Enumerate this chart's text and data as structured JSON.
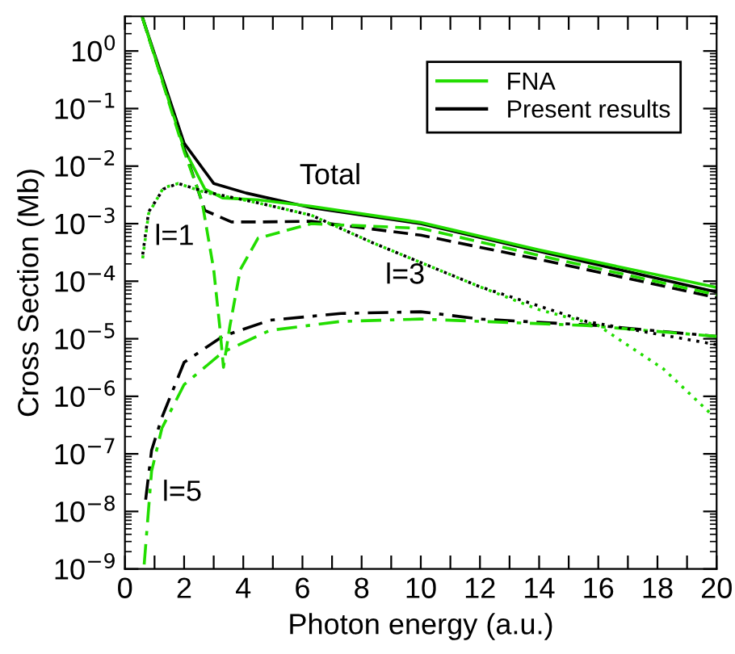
{
  "chart_data": {
    "type": "line",
    "xlabel": "Photon energy (a.u.)",
    "ylabel": "Cross Section (Mb)",
    "log": "y",
    "xlim": [
      0,
      20
    ],
    "ylim": [
      1e-09,
      4
    ],
    "xticks": [
      0,
      {
        "value": 1,
        "label": null
      },
      2,
      {
        "value": 3,
        "label": null
      },
      4,
      {
        "value": 5,
        "label": null
      },
      6,
      {
        "value": 7,
        "label": null
      },
      8,
      {
        "value": 9,
        "label": null
      },
      10,
      {
        "value": 11,
        "label": null
      },
      12,
      {
        "value": 13,
        "label": null
      },
      14,
      {
        "value": 15,
        "label": null
      },
      16,
      {
        "value": 17,
        "label": null
      },
      18,
      {
        "value": 19,
        "label": null
      },
      20
    ],
    "yticks": [
      {
        "value": 1e-09,
        "label": "10$^{−9}$"
      },
      {
        "value": 1e-08,
        "label": "10$^{−8}$"
      },
      {
        "value": 1e-07,
        "label": "10$^{−7}$"
      },
      {
        "value": 1e-06,
        "label": "10$^{−6}$"
      },
      {
        "value": 1e-05,
        "label": "10$^{−5}$"
      },
      {
        "value": 0.0001,
        "label": "10$^{−4}$"
      },
      {
        "value": 0.001,
        "label": "10$^{−3}$"
      },
      {
        "value": 0.01,
        "label": "10$^{−2}$"
      },
      {
        "value": 0.1,
        "label": "10$^{−1}$"
      },
      {
        "value": 1,
        "label": "10$^{0}$"
      }
    ],
    "grid": false,
    "legend": "top right",
    "marker": "none",
    "series": [
      {
        "name": "FNA",
        "color": "#22dd00",
        "line_style": "solid",
        "x": [
          0.6,
          2,
          2.7,
          3.3,
          4.5,
          6.3,
          10,
          14,
          20
        ],
        "values": [
          3.7,
          0.02,
          0.004,
          0.0028,
          0.0026,
          0.002,
          0.00105,
          0.00035,
          7.8e-05
        ]
      },
      {
        "name": "Present results",
        "color": "#000000",
        "line_style": "solid",
        "x": [
          0.6,
          2,
          3,
          4.1,
          6.3,
          10,
          14,
          20
        ],
        "values": [
          3.7,
          0.025,
          0.005,
          0.0034,
          0.0019,
          0.001,
          0.00033,
          6.5e-05
        ]
      },
      {
        "color": "#22dd00",
        "line_style": "dotted",
        "x": [
          0.6,
          0.8,
          1.3,
          1.8,
          2.7,
          4.5,
          6.3,
          8.4,
          12,
          14,
          16,
          18.2,
          19.8
        ],
        "values": [
          0.00025,
          0.0015,
          0.0042,
          0.005,
          0.0035,
          0.0023,
          0.0014,
          0.00046,
          8e-05,
          3.2e-05,
          1.7e-05,
          3e-06,
          5e-07
        ]
      },
      {
        "color": "#000000",
        "line_style": "dotted",
        "x": [
          0.6,
          0.8,
          1.3,
          1.8,
          2.7,
          4.5,
          6.3,
          8.4,
          12,
          15.6,
          20
        ],
        "values": [
          0.00029,
          0.0016,
          0.004,
          0.005,
          0.0036,
          0.0023,
          0.0014,
          0.00046,
          8e-05,
          2e-05,
          7.9e-06
        ]
      },
      {
        "color": "#22dd00",
        "line_style": "dashed",
        "x": [
          0.6,
          2,
          2.6,
          3.0,
          3.2,
          3.33,
          3.55,
          3.9,
          4.5,
          6.3,
          10,
          14,
          20
        ],
        "values": [
          3.7,
          0.018,
          0.0025,
          0.00016,
          1.7e-05,
          3.2e-06,
          1.7e-05,
          0.00016,
          0.00056,
          0.001,
          0.00083,
          0.00028,
          5.8e-05
        ]
      },
      {
        "color": "#000000",
        "line_style": "dashed",
        "x": [
          0.6,
          2,
          2.7,
          3.6,
          4.5,
          6.3,
          10,
          14,
          20
        ],
        "values": [
          3.7,
          0.02,
          0.0017,
          0.00107,
          0.00107,
          0.0011,
          0.00063,
          0.00024,
          5.2e-05
        ]
      },
      {
        "color": "#22dd00",
        "line_style": "dashdot",
        "x": [
          0.65,
          0.9,
          1.25,
          2,
          3.3,
          4.9,
          7.3,
          10,
          15.6,
          20
        ],
        "values": [
          1.2e-09,
          5e-08,
          2.8e-07,
          1.6e-06,
          5.8e-06,
          1.4e-05,
          2e-05,
          2.2e-05,
          1.7e-05,
          1.1e-05
        ]
      },
      {
        "color": "#000000",
        "line_style": "dashdot",
        "x": [
          0.7,
          0.9,
          1.25,
          2,
          3.3,
          4.9,
          7.3,
          10,
          12,
          16,
          20
        ],
        "values": [
          1.6e-08,
          1.15e-07,
          4.3e-07,
          3.9e-06,
          1.1e-05,
          2.1e-05,
          2.75e-05,
          2.95e-05,
          2.2e-05,
          1.7e-05,
          1.1e-05
        ]
      }
    ],
    "annotations": [
      "Total",
      "l=1",
      "l=3",
      "l=5"
    ]
  }
}
